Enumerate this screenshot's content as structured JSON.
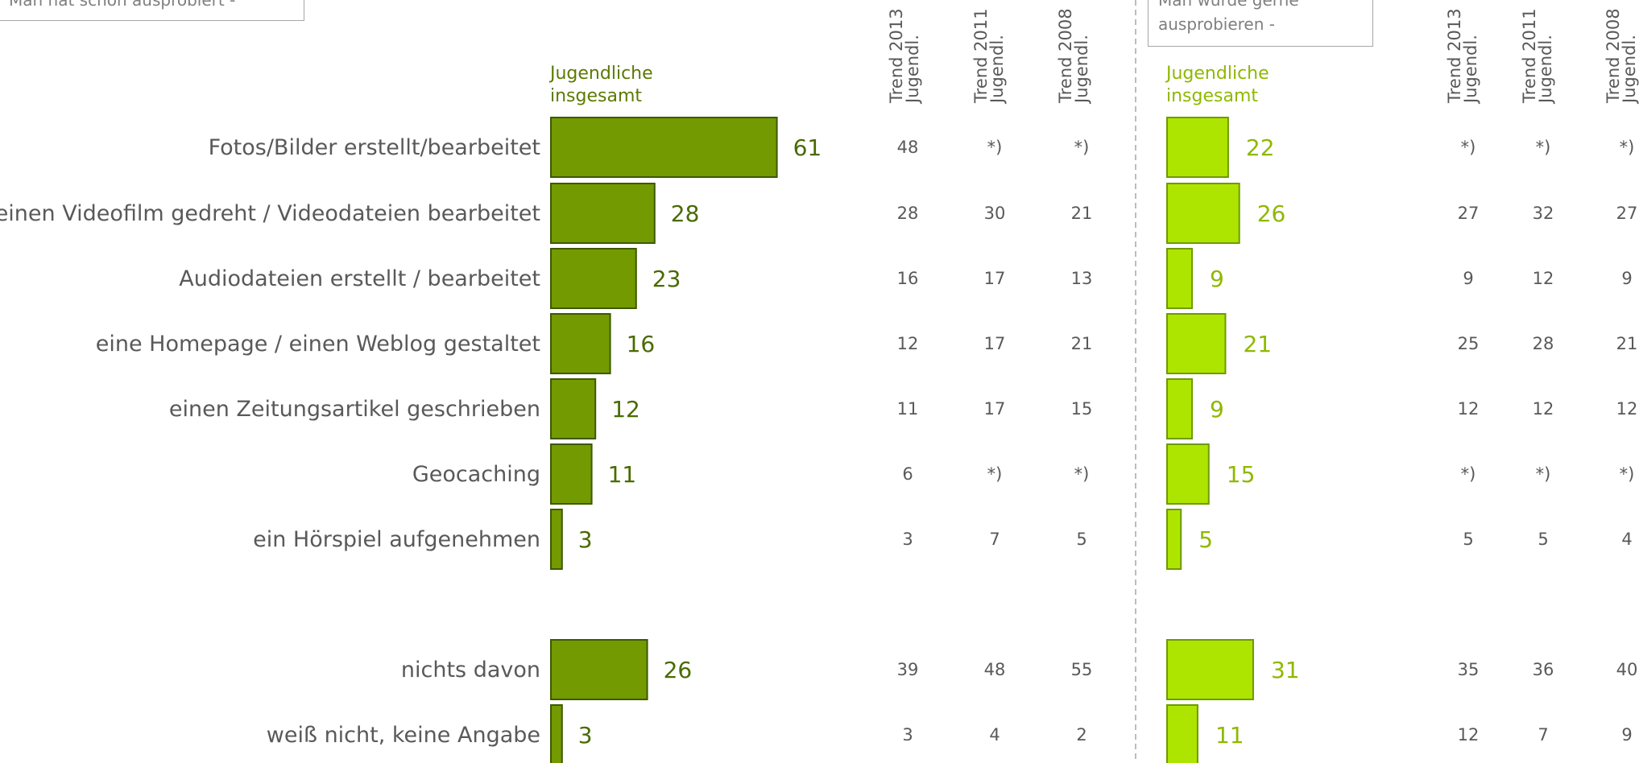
{
  "left_panel": {
    "box_text": "Man hat schon ausprobiert -",
    "series_label_line1": "Jugendliche",
    "series_label_line2": "insgesamt",
    "trend_headers": [
      {
        "line1": "Trend 2013",
        "line2": "Jugendl."
      },
      {
        "line1": "Trend 2011",
        "line2": "Jugendl."
      },
      {
        "line1": "Trend 2008",
        "line2": "Jugendl."
      }
    ]
  },
  "right_panel": {
    "box_line1": "Man würde gerne",
    "box_line2": "ausprobieren -",
    "series_label_line1": "Jugendliche",
    "series_label_line2": "insgesamt",
    "trend_headers": [
      {
        "line1": "Trend 2013",
        "line2": "Jugendl."
      },
      {
        "line1": "Trend 2011",
        "line2": "Jugendl."
      },
      {
        "line1": "Trend 2008",
        "line2": "Jugendl."
      }
    ]
  },
  "colors": {
    "left_bar": "#739a00",
    "left_bar_border": "#3d5900",
    "left_value": "#4a6a00",
    "left_label_head": "#5c7a00",
    "right_bar": "#aee500",
    "right_bar_border": "#6e9a00",
    "right_value": "#8fb800",
    "right_label_head": "#8fb800",
    "category_text": "#595959",
    "trend_text": "#595959",
    "divider": "#a6a6a6"
  },
  "chart_data": {
    "type": "bar",
    "categories": [
      "Fotos/Bilder erstellt/bearbeitet",
      "einen Videofilm gedreht / Videodateien bearbeitet",
      "Audiodateien erstellt / bearbeitet",
      "eine Homepage / einen Weblog gestaltet",
      "einen Zeitungsartikel geschrieben",
      "Geocaching",
      "ein Hörspiel aufgenehmen",
      "nichts davon",
      "weiß nicht, keine Angabe"
    ],
    "series": [
      {
        "name": "Man hat schon ausprobiert - Jugendliche insgesamt",
        "values": [
          61,
          28,
          23,
          16,
          12,
          11,
          3,
          26,
          3
        ],
        "trend_2013": [
          "48",
          "28",
          "16",
          "12",
          "11",
          "6",
          "3",
          "39",
          "3"
        ],
        "trend_2011": [
          "*)",
          "30",
          "17",
          "17",
          "17",
          "*)",
          "7",
          "48",
          "4"
        ],
        "trend_2008": [
          "*)",
          "21",
          "13",
          "21",
          "15",
          "*)",
          "5",
          "55",
          "2"
        ]
      },
      {
        "name": "Man würde gerne ausprobieren - Jugendliche insgesamt",
        "values": [
          22,
          26,
          9,
          21,
          9,
          15,
          5,
          31,
          11
        ],
        "trend_2013": [
          "*)",
          "27",
          "9",
          "25",
          "12",
          "*)",
          "5",
          "35",
          "12"
        ],
        "trend_2011": [
          "*)",
          "32",
          "12",
          "28",
          "12",
          "*)",
          "5",
          "36",
          "7"
        ],
        "trend_2008": [
          "*)",
          "27",
          "9",
          "21",
          "12",
          "*)",
          "4",
          "40",
          "9"
        ]
      }
    ],
    "xlim": [
      0,
      100
    ]
  }
}
